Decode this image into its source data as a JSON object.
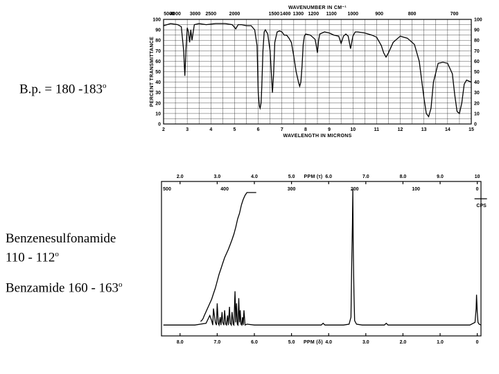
{
  "labels": {
    "bp": "B.p. = 180 -183",
    "sulfonamide_name": "Benzenesulfonamide",
    "sulfonamide_bp": "110 - 112",
    "benzamide": "Benzamide 160 - 163",
    "degree": "o"
  },
  "chart_data": [
    {
      "type": "line",
      "name": "IR spectrum",
      "xlabel": "WAVELENGTH IN MICRONS",
      "ylabel": "PERCENT TRANSMITTANCE",
      "top_axis_label": "WAVENUMBER IN CM⁻¹",
      "xlim": [
        2,
        15
      ],
      "ylim": [
        0,
        100
      ],
      "x_ticks": [
        "2",
        "3",
        "4",
        "5",
        "6",
        "7",
        "8",
        "9",
        "10",
        "11",
        "12",
        "13",
        "14",
        "15"
      ],
      "y_ticks": [
        "0",
        "10",
        "20",
        "30",
        "40",
        "50",
        "60",
        "70",
        "80",
        "90",
        "100"
      ],
      "top_ticks": [
        "5000",
        "4000",
        "3000",
        "2500",
        "2000",
        "1500",
        "1400",
        "1300",
        "1200",
        "1100",
        "1000",
        "900",
        "800",
        "700"
      ],
      "grid": true,
      "x": [
        2.0,
        2.3,
        2.6,
        2.75,
        2.85,
        2.9,
        2.95,
        3.0,
        3.05,
        3.1,
        3.15,
        3.2,
        3.3,
        3.5,
        3.8,
        4.2,
        4.6,
        4.9,
        5.05,
        5.15,
        5.3,
        5.5,
        5.7,
        5.85,
        5.95,
        6.0,
        6.05,
        6.08,
        6.12,
        6.15,
        6.2,
        6.25,
        6.3,
        6.4,
        6.5,
        6.55,
        6.6,
        6.65,
        6.7,
        6.8,
        6.9,
        7.0,
        7.1,
        7.2,
        7.3,
        7.4,
        7.5,
        7.6,
        7.7,
        7.75,
        7.8,
        7.85,
        7.9,
        7.95,
        8.0,
        8.2,
        8.4,
        8.45,
        8.5,
        8.55,
        8.6,
        8.8,
        9.0,
        9.2,
        9.4,
        9.5,
        9.6,
        9.7,
        9.8,
        9.85,
        9.9,
        10.0,
        10.05,
        10.1,
        10.2,
        10.5,
        10.8,
        11.0,
        11.2,
        11.3,
        11.4,
        11.5,
        11.7,
        12.0,
        12.3,
        12.6,
        12.8,
        13.0,
        13.1,
        13.2,
        13.3,
        13.4,
        13.6,
        13.8,
        14.0,
        14.2,
        14.3,
        14.4,
        14.5,
        14.6,
        14.7,
        14.8,
        15.0
      ],
      "y": [
        94,
        96,
        95,
        93,
        70,
        46,
        72,
        92,
        88,
        78,
        90,
        80,
        95,
        96,
        95,
        96,
        96,
        95,
        91,
        95,
        95,
        94,
        94,
        90,
        75,
        30,
        17,
        15,
        20,
        35,
        70,
        88,
        90,
        86,
        70,
        50,
        30,
        48,
        78,
        88,
        89,
        88,
        85,
        85,
        82,
        78,
        65,
        50,
        40,
        36,
        40,
        55,
        76,
        84,
        86,
        85,
        81,
        75,
        68,
        80,
        86,
        88,
        87,
        85,
        84,
        77,
        84,
        86,
        84,
        78,
        72,
        84,
        86,
        88,
        88,
        87,
        85,
        83,
        75,
        68,
        64,
        68,
        78,
        84,
        82,
        76,
        60,
        25,
        10,
        7,
        15,
        40,
        58,
        59,
        58,
        48,
        28,
        12,
        10,
        20,
        38,
        42,
        40
      ],
      "color": "#000000"
    },
    {
      "type": "line",
      "name": "NMR spectrum",
      "xlabel": "PPM (δ)",
      "top_axis_label": "PPM (τ)",
      "xlim": [
        8.5,
        -0.1
      ],
      "bottom_ticks": [
        "8.0",
        "7.0",
        "6.0",
        "5.0",
        "4.0",
        "3.0",
        "2.0",
        "1.0",
        "0"
      ],
      "bottom_tick_values": [
        8,
        7,
        6,
        5,
        4,
        3,
        2,
        1,
        0
      ],
      "top_ticks": [
        "2.0",
        "3.0",
        "4.0",
        "5.0",
        "6.0",
        "7.0",
        "8.0",
        "9.0",
        "10"
      ],
      "hz_ticks": [
        "500",
        "400",
        "300",
        "200",
        "100",
        "0"
      ],
      "hz_unit": "CPS",
      "grid": false,
      "x": [
        8.45,
        7.6,
        7.45,
        7.3,
        7.2,
        7.15,
        7.12,
        7.1,
        7.05,
        7.02,
        7.0,
        6.97,
        6.95,
        6.92,
        6.9,
        6.87,
        6.85,
        6.82,
        6.8,
        6.77,
        6.75,
        6.72,
        6.7,
        6.67,
        6.65,
        6.62,
        6.6,
        6.57,
        6.55,
        6.52,
        6.5,
        6.48,
        6.46,
        6.44,
        6.42,
        6.4,
        6.38,
        6.36,
        6.34,
        6.32,
        6.3,
        6.28,
        6.25,
        6.2,
        6.0,
        4.2,
        4.15,
        4.1,
        3.6,
        3.45,
        3.4,
        3.38,
        3.36,
        3.35,
        3.34,
        3.32,
        3.3,
        3.25,
        3.1,
        2.5,
        2.45,
        2.4,
        1.0,
        0.2,
        0.06,
        0.03,
        0.02,
        0.0,
        -0.02,
        -0.05,
        -0.1
      ],
      "y": [
        3,
        3,
        4,
        5,
        14,
        8,
        3,
        22,
        6,
        3,
        28,
        5,
        3,
        12,
        3,
        18,
        6,
        3,
        20,
        4,
        3,
        14,
        3,
        24,
        5,
        3,
        18,
        4,
        3,
        42,
        6,
        28,
        4,
        3,
        34,
        6,
        20,
        4,
        3,
        12,
        3,
        20,
        3,
        4,
        3,
        3,
        5,
        3,
        3,
        4,
        12,
        75,
        120,
        160,
        100,
        40,
        8,
        4,
        3,
        3,
        5,
        3,
        3,
        3,
        6,
        22,
        38,
        18,
        6,
        4,
        3
      ],
      "integral_x": [
        7.45,
        7.42,
        7.38,
        7.35,
        7.3,
        7.25,
        7.2,
        7.15,
        7.1,
        7.05,
        7.0,
        6.95,
        6.9,
        6.85,
        6.8,
        6.75,
        6.7,
        6.65,
        6.6,
        6.55,
        6.5,
        6.45,
        6.4,
        6.35,
        6.3,
        6.25,
        6.2,
        5.95
      ],
      "integral_y": [
        4,
        5,
        8,
        12,
        18,
        24,
        30,
        36,
        44,
        52,
        62,
        72,
        80,
        88,
        96,
        102,
        108,
        115,
        122,
        130,
        140,
        152,
        160,
        172,
        180,
        186,
        190,
        190
      ],
      "color": "#000000"
    }
  ]
}
